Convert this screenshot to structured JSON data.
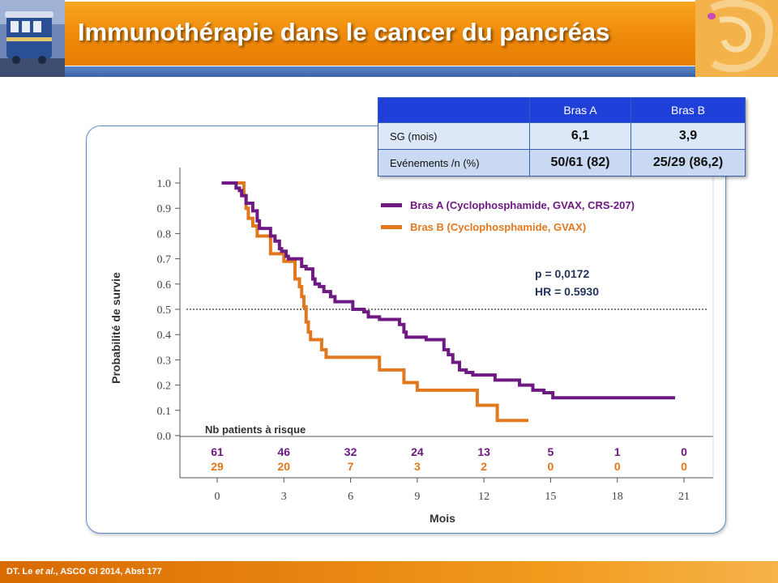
{
  "header": {
    "title": "Immunothérapie dans le cancer du pancréas"
  },
  "summary_table": {
    "columns": [
      "",
      "Bras A",
      "Bras B"
    ],
    "rows": [
      {
        "label": "SG (mois)",
        "a": "6,1",
        "b": "3,9"
      },
      {
        "label": "Evénements /n (%)",
        "a": "50/61 (82)",
        "b": "25/29 (86,2)"
      }
    ]
  },
  "footer": {
    "authors_prefix": "DT. Le ",
    "etal": "et al.",
    "citation": ", ASCO GI 2014, Abst 177"
  },
  "colors": {
    "arm_a": "#6e1a83",
    "arm_b": "#e2781d",
    "header_orange": "#f29a1d",
    "table_header_blue": "#1f40d8"
  },
  "chart_data": {
    "type": "line",
    "xlabel": "Mois",
    "ylabel": "Probabilité de survie",
    "xlim": [
      0,
      21
    ],
    "ylim": [
      0,
      1
    ],
    "x_ticks": [
      "0",
      "3",
      "6",
      "9",
      "12",
      "15",
      "18",
      "21"
    ],
    "y_ticks": [
      "0.0",
      "0.1",
      "0.2",
      "0.3",
      "0.4",
      "0.5",
      "0.6",
      "0.7",
      "0.8",
      "0.9",
      "1.0"
    ],
    "reference_line_y": 0.5,
    "series": [
      {
        "name": "Bras A (Cyclophosphamide, GVAX, CRS-207)",
        "points": [
          [
            0.2,
            1.0
          ],
          [
            0.8,
            1.0
          ],
          [
            0.85,
            0.98
          ],
          [
            1.0,
            0.97
          ],
          [
            1.1,
            0.95
          ],
          [
            1.3,
            0.92
          ],
          [
            1.6,
            0.89
          ],
          [
            1.8,
            0.85
          ],
          [
            1.9,
            0.82
          ],
          [
            2.3,
            0.82
          ],
          [
            2.4,
            0.79
          ],
          [
            2.6,
            0.77
          ],
          [
            2.8,
            0.74
          ],
          [
            2.9,
            0.73
          ],
          [
            3.1,
            0.71
          ],
          [
            3.2,
            0.7
          ],
          [
            3.5,
            0.7
          ],
          [
            3.6,
            0.7
          ],
          [
            3.8,
            0.67
          ],
          [
            4.0,
            0.66
          ],
          [
            4.3,
            0.62
          ],
          [
            4.4,
            0.6
          ],
          [
            4.6,
            0.59
          ],
          [
            4.8,
            0.57
          ],
          [
            5.1,
            0.55
          ],
          [
            5.3,
            0.53
          ],
          [
            6.0,
            0.53
          ],
          [
            6.1,
            0.5
          ],
          [
            6.6,
            0.49
          ],
          [
            6.8,
            0.47
          ],
          [
            7.3,
            0.46
          ],
          [
            7.4,
            0.46
          ],
          [
            8.2,
            0.44
          ],
          [
            8.4,
            0.41
          ],
          [
            8.5,
            0.39
          ],
          [
            9.3,
            0.39
          ],
          [
            9.4,
            0.38
          ],
          [
            10.0,
            0.38
          ],
          [
            10.2,
            0.34
          ],
          [
            10.4,
            0.32
          ],
          [
            10.6,
            0.29
          ],
          [
            10.9,
            0.26
          ],
          [
            11.2,
            0.25
          ],
          [
            11.5,
            0.24
          ],
          [
            12.4,
            0.24
          ],
          [
            12.5,
            0.22
          ],
          [
            13.5,
            0.22
          ],
          [
            13.6,
            0.2
          ],
          [
            14.1,
            0.2
          ],
          [
            14.2,
            0.18
          ],
          [
            14.7,
            0.17
          ],
          [
            15.0,
            0.17
          ],
          [
            15.1,
            0.15
          ],
          [
            20.6,
            0.15
          ]
        ]
      },
      {
        "name": "Bras B (Cyclophosphamide, GVAX)",
        "points": [
          [
            0.2,
            1.0
          ],
          [
            1.1,
            1.0
          ],
          [
            1.2,
            0.95
          ],
          [
            1.3,
            0.9
          ],
          [
            1.4,
            0.86
          ],
          [
            1.6,
            0.83
          ],
          [
            1.8,
            0.79
          ],
          [
            2.3,
            0.79
          ],
          [
            2.4,
            0.72
          ],
          [
            2.9,
            0.72
          ],
          [
            3.0,
            0.69
          ],
          [
            3.4,
            0.69
          ],
          [
            3.5,
            0.62
          ],
          [
            3.7,
            0.59
          ],
          [
            3.8,
            0.55
          ],
          [
            3.9,
            0.51
          ],
          [
            4.0,
            0.45
          ],
          [
            4.1,
            0.41
          ],
          [
            4.2,
            0.38
          ],
          [
            4.6,
            0.38
          ],
          [
            4.7,
            0.34
          ],
          [
            4.9,
            0.31
          ],
          [
            7.2,
            0.31
          ],
          [
            7.3,
            0.26
          ],
          [
            8.3,
            0.26
          ],
          [
            8.4,
            0.21
          ],
          [
            8.9,
            0.21
          ],
          [
            9.0,
            0.18
          ],
          [
            11.6,
            0.18
          ],
          [
            11.7,
            0.12
          ],
          [
            12.5,
            0.12
          ],
          [
            12.6,
            0.06
          ],
          [
            14.0,
            0.06
          ]
        ]
      }
    ],
    "stats": {
      "p": "p = 0,0172",
      "hr": "HR = 0.5930"
    },
    "risk_table": {
      "label": "Nb patients à risque",
      "arm_a": [
        "61",
        "46",
        "32",
        "24",
        "13",
        "5",
        "1",
        "0"
      ],
      "arm_b": [
        "29",
        "20",
        "7",
        "3",
        "2",
        "0",
        "0",
        "0"
      ]
    }
  }
}
